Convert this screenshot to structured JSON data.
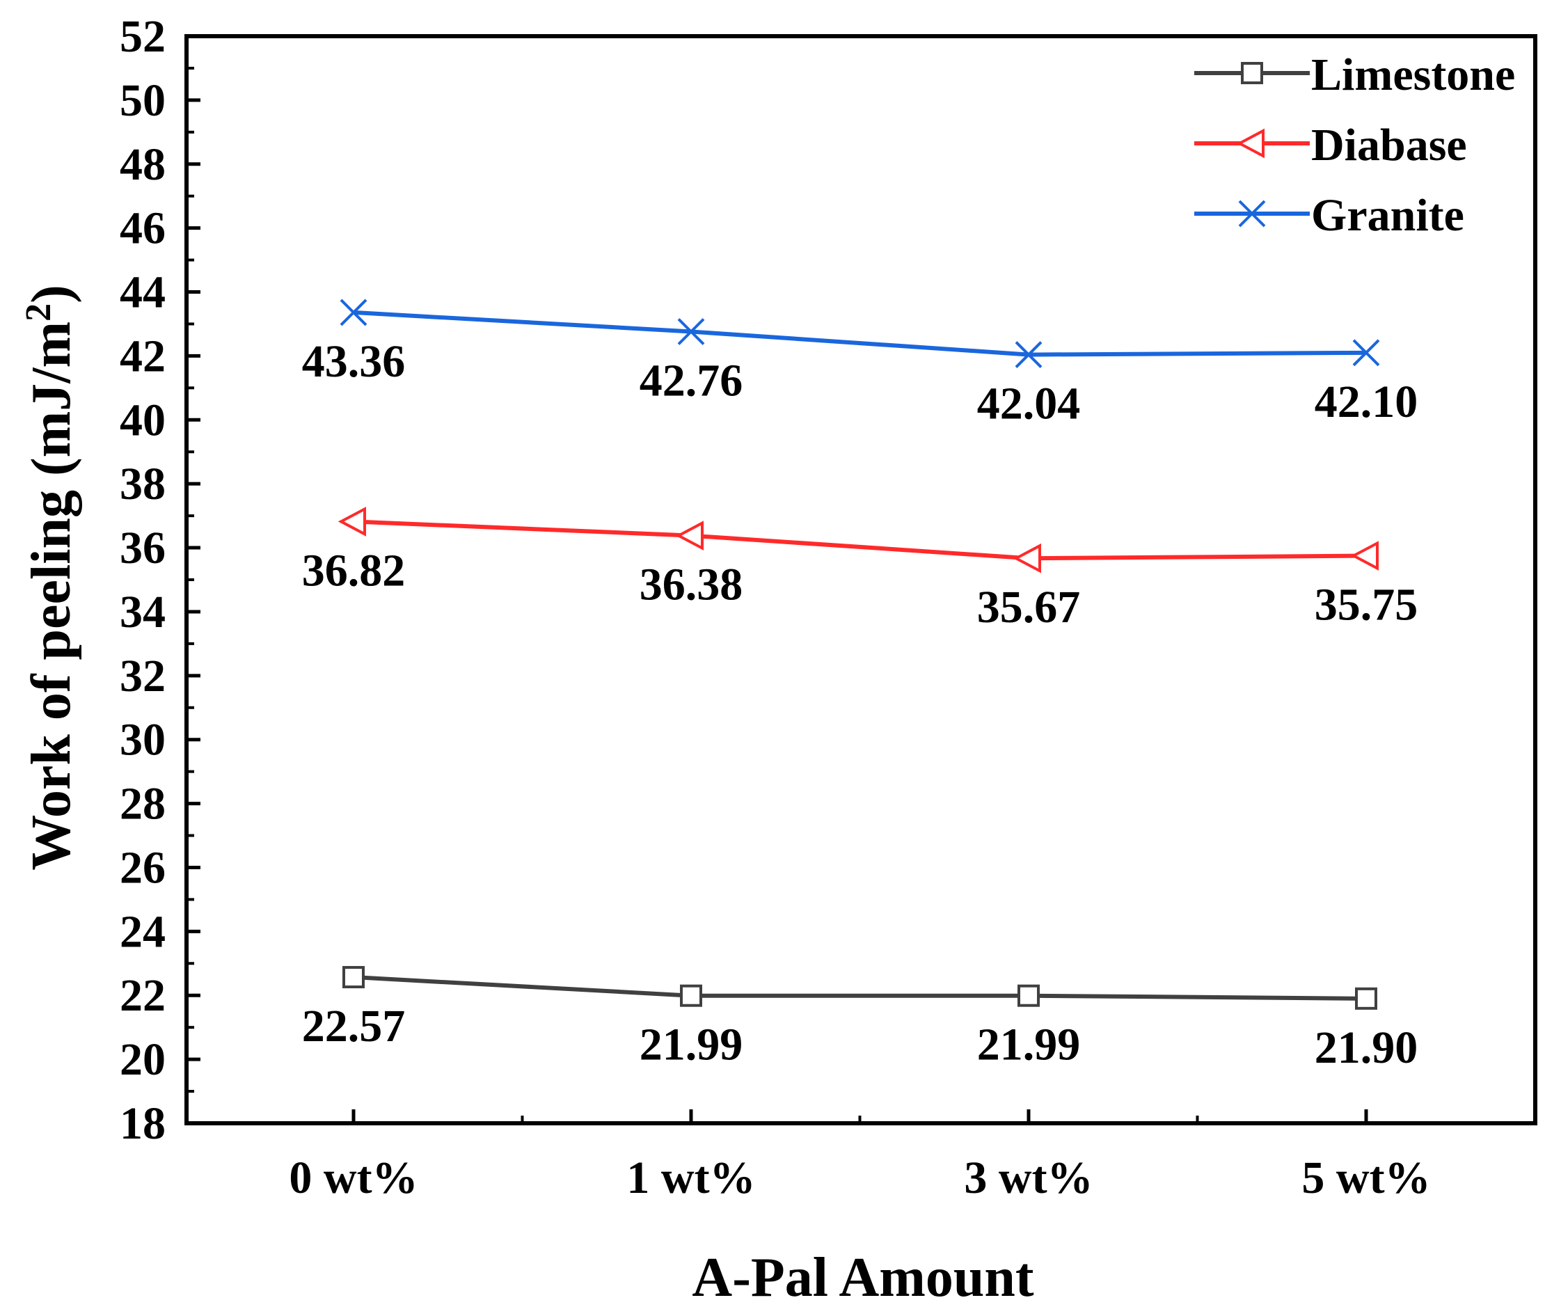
{
  "chart_data": {
    "type": "line",
    "title": "",
    "xlabel": "A-Pal Amount",
    "ylabel": "Work of peeling (mJ/m",
    "ylabel_superscript": "2",
    "ylabel_close": ")",
    "categories": [
      "0 wt%",
      "1 wt%",
      "3 wt%",
      "5 wt%"
    ],
    "ylim": [
      18,
      52
    ],
    "yticks": [
      18,
      20,
      22,
      24,
      26,
      28,
      30,
      32,
      34,
      36,
      38,
      40,
      42,
      44,
      46,
      48,
      50,
      52
    ],
    "grid": false,
    "legend_position": "top-right",
    "series": [
      {
        "name": "Limestone",
        "color": "#404040",
        "marker": "square",
        "values": [
          22.57,
          21.99,
          21.99,
          21.9
        ],
        "labels": [
          "22.57",
          "21.99",
          "21.99",
          "21.90"
        ]
      },
      {
        "name": "Diabase",
        "color": "#ff2a2a",
        "marker": "left-triangle",
        "values": [
          36.82,
          36.38,
          35.67,
          35.75
        ],
        "labels": [
          "36.82",
          "36.38",
          "35.67",
          "35.75"
        ]
      },
      {
        "name": "Granite",
        "color": "#1a66dd",
        "marker": "x",
        "values": [
          43.36,
          42.76,
          42.04,
          42.1
        ],
        "labels": [
          "43.36",
          "42.76",
          "42.04",
          "42.10"
        ]
      }
    ]
  }
}
